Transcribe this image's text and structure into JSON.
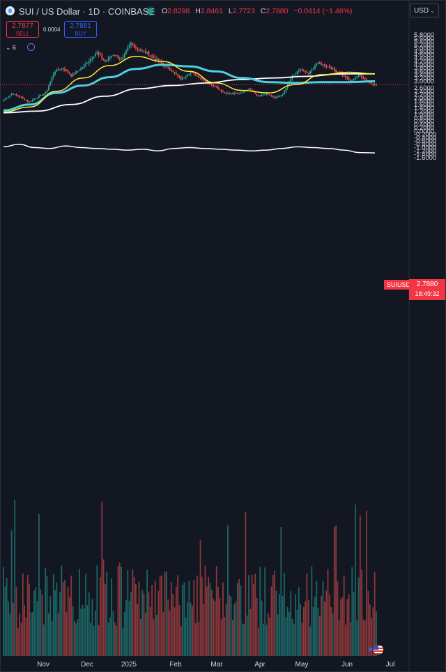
{
  "header": {
    "title": "SUI / US Dollar · 1D · COINBASE",
    "ohlc": {
      "o_label": "O",
      "o": "2.8298",
      "h_label": "H",
      "h": "2.8461",
      "l_label": "L",
      "l": "2.7723",
      "c_label": "C",
      "c": "2.7880",
      "change": "−0.0414 (−1.46%)"
    },
    "currency": "USD",
    "currency_chevron": "⌄"
  },
  "trade": {
    "sell_price": "2.7877",
    "sell_label": "SELL",
    "spread": "0.0004",
    "buy_price": "2.7881",
    "buy_label": "BUY"
  },
  "indicators": {
    "toggle_label": "⌄ 6"
  },
  "price_tag": {
    "symbol": "SUIUSD",
    "price": "2.7880",
    "countdown": "18:49:32"
  },
  "colors": {
    "background": "#131722",
    "up": "#26a69a",
    "down": "#ef5350",
    "ma_fast": "#ffeb3b",
    "ma_mid": "#4dd0e1",
    "ma_slow": "#ffffff",
    "last_price": "#f23645"
  },
  "chart_data": {
    "type": "candlestick",
    "x_labels": [
      "Nov",
      "Dec",
      "2025",
      "Feb",
      "Mar",
      "Apr",
      "May",
      "Jun",
      "Jul"
    ],
    "y_labels": [
      "5.8000",
      "5.6000",
      "5.4000",
      "5.2000",
      "5.0000",
      "4.8000",
      "4.6000",
      "4.4000",
      "4.2000",
      "4.0000",
      "3.8000",
      "3.6000",
      "3.4000",
      "3.2000",
      "3.0000",
      "2.6000",
      "2.4000",
      "2.2000",
      "2.0000",
      "1.8000",
      "1.6000",
      "1.4000",
      "1.2000",
      "1.0000",
      "0.8000",
      "0.6000",
      "0.4000",
      "0.2000",
      "0.0000",
      "-0.2000",
      "-0.4000",
      "-0.6000",
      "-0.8000",
      "-1.0000",
      "-1.2000",
      "-1.4000",
      "-1.6000"
    ],
    "yrange": [
      -1.6,
      5.8
    ],
    "last_price": 2.788,
    "anchors": [
      [
        "Oct",
        1.85
      ],
      [
        "Oct",
        2.25
      ],
      [
        "Oct",
        2.05
      ],
      [
        "Oct",
        1.75
      ],
      [
        "Oct",
        2.05
      ],
      [
        "Nov",
        2.3
      ],
      [
        "Nov",
        3.6
      ],
      [
        "Nov",
        3.8
      ],
      [
        "Nov",
        3.35
      ],
      [
        "Nov",
        3.7
      ],
      [
        "Dec",
        4.2
      ],
      [
        "Dec",
        4.75
      ],
      [
        "Dec",
        4.2
      ],
      [
        "Dec",
        4.65
      ],
      [
        "Dec",
        4.3
      ],
      [
        "2025",
        5.3
      ],
      [
        "2025",
        4.9
      ],
      [
        "2025",
        4.7
      ],
      [
        "Jan",
        4.3
      ],
      [
        "Jan",
        3.95
      ],
      [
        "Jan",
        3.6
      ],
      [
        "Feb",
        3.1
      ],
      [
        "Feb",
        3.55
      ],
      [
        "Feb",
        3.3
      ],
      [
        "Feb",
        2.95
      ],
      [
        "Mar",
        2.7
      ],
      [
        "Mar",
        2.3
      ],
      [
        "Mar",
        2.25
      ],
      [
        "Mar",
        2.3
      ],
      [
        "Mar",
        2.6
      ],
      [
        "Apr",
        2.1
      ],
      [
        "Apr",
        2.25
      ],
      [
        "Apr",
        2.0
      ],
      [
        "Apr",
        2.2
      ],
      [
        "Apr",
        3.25
      ],
      [
        "May",
        3.7
      ],
      [
        "May",
        3.45
      ],
      [
        "May",
        4.1
      ],
      [
        "May",
        3.95
      ],
      [
        "May",
        3.7
      ],
      [
        "Jun",
        3.4
      ],
      [
        "Jun",
        3.0
      ],
      [
        "Jun",
        3.4
      ],
      [
        "Jun",
        2.95
      ],
      [
        "Jun",
        2.79
      ]
    ],
    "ma_fast": [
      [
        1.15,
        1.45,
        2.4,
        3.2,
        3.95,
        4.5,
        4.2,
        3.6,
        2.9,
        2.45,
        2.3,
        2.8,
        3.4,
        3.55,
        3.45
      ]
    ],
    "ma_mid": [
      [
        1.25,
        1.6,
        2.3,
        2.75,
        3.25,
        3.75,
        4.0,
        3.9,
        3.6,
        3.2,
        2.95,
        2.9,
        2.95,
        2.95,
        3.0
      ]
    ],
    "ma_slow": [
      [
        1.1,
        1.2,
        1.6,
        2.1,
        2.55,
        2.75,
        2.9,
        3.1,
        3.2,
        3.3,
        3.45,
        3.45
      ]
    ],
    "volume_line": [
      [
        -0.95,
        -0.8,
        -1.0,
        -1.05,
        -0.9,
        -1.0,
        -1.05,
        -1.1,
        -1.15,
        -1.1,
        -1.2,
        -1.05,
        -1.0,
        -1.05,
        -1.1,
        -1.15,
        -1.2,
        -1.15,
        -1.05,
        -0.95,
        -1.0,
        -1.05,
        -1.15,
        -1.3,
        -1.32
      ]
    ]
  }
}
